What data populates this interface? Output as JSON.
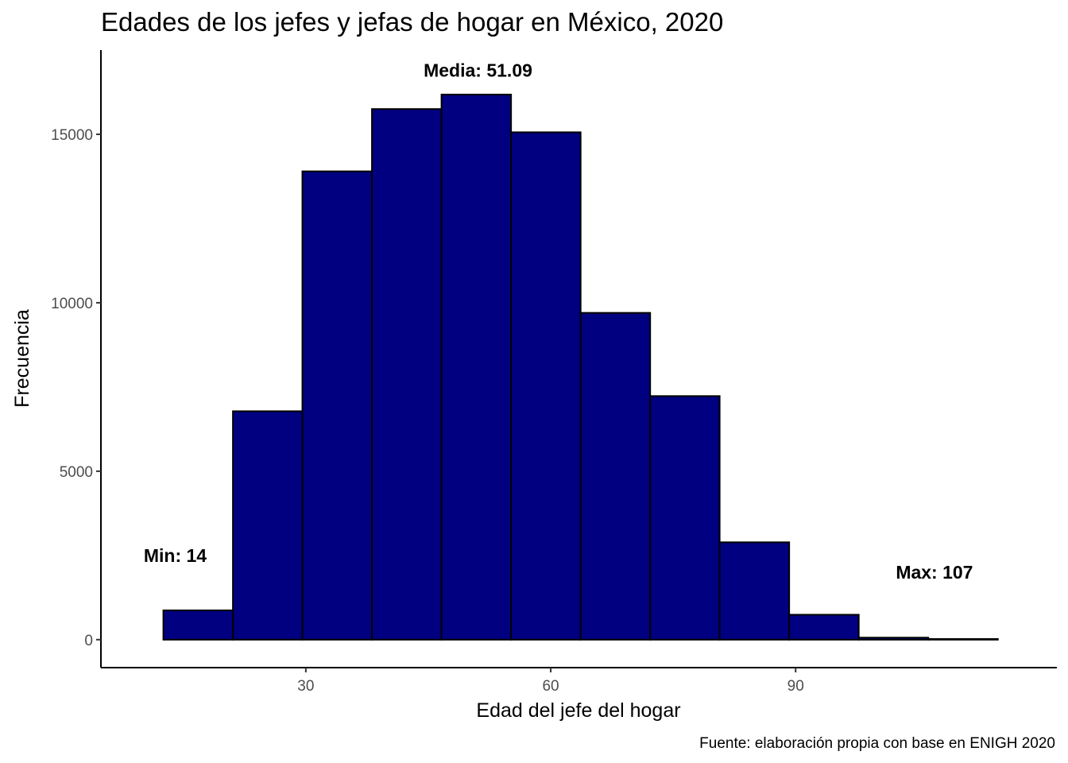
{
  "chart_data": {
    "type": "bar",
    "title": "Edades de los jefes y jefas de hogar en México, 2020",
    "xlabel": "Edad del jefe del hogar",
    "ylabel": "Frecuencia",
    "caption": "Fuente: elaboración propia con base en ENIGH 2020",
    "bin_edges": [
      12.55,
      21.07,
      29.58,
      38.1,
      46.62,
      55.14,
      63.66,
      72.18,
      80.69,
      89.21,
      97.73,
      106.25,
      114.77
    ],
    "values": [
      870,
      6780,
      13900,
      15750,
      16180,
      15060,
      9700,
      7230,
      2890,
      740,
      60,
      20
    ],
    "xlim": [
      4.9,
      122.0
    ],
    "ylim": [
      -830,
      17500
    ],
    "x_ticks": [
      30,
      60,
      90
    ],
    "y_ticks": [
      0,
      5000,
      10000,
      15000
    ],
    "x_tick_labels": [
      "30",
      "60",
      "90"
    ],
    "y_tick_labels": [
      "0",
      "5000",
      "10000",
      "15000"
    ],
    "bar_fill": "#000080",
    "bar_stroke": "#000000",
    "grid": false,
    "annotations": [
      {
        "text": "Min: 14",
        "x": 14,
        "y": 2500
      },
      {
        "text": "Media: 51.09",
        "x": 51.09,
        "y": 16900
      },
      {
        "text": "Max: 107",
        "x": 107,
        "y": 2000
      }
    ]
  }
}
